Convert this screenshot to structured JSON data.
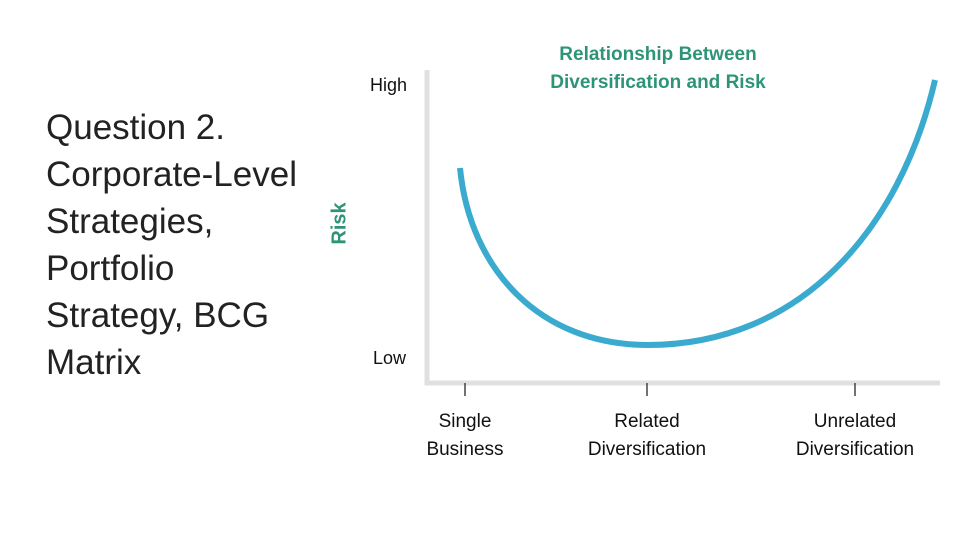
{
  "slide": {
    "title": "Question 2. Corporate-Level Strategies, Portfolio Strategy, BCG Matrix",
    "diagram": {
      "title": "Relationship Between Diversification and Risk",
      "y_axis_label": "Risk",
      "y_high": "High",
      "y_low": "Low",
      "x_labels": [
        "Single Business",
        "Related Diversification",
        "Unrelated Diversification"
      ]
    }
  }
}
